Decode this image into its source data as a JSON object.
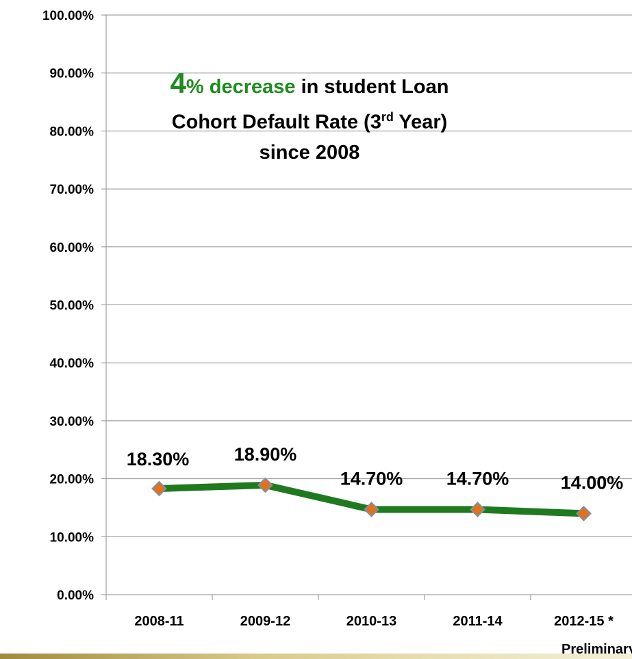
{
  "chart_data": {
    "type": "line",
    "title": {
      "highlight_number": "4",
      "highlight_text": "% decrease",
      "line1_rest": " in student Loan",
      "line2_pre": "Cohort Default Rate (3",
      "line2_sup": "rd",
      "line2_post": " Year)",
      "line3": "since 2008"
    },
    "categories": [
      "2008-11",
      "2009-12",
      "2010-13",
      "2011-14",
      "2012-15 *"
    ],
    "category_note": "Preliminary",
    "values": [
      18.3,
      18.9,
      14.7,
      14.7,
      14.0
    ],
    "data_labels": [
      "18.30%",
      "18.90%",
      "14.70%",
      "14.70%",
      "14.00%"
    ],
    "yticks": [
      "0.00%",
      "10.00%",
      "20.00%",
      "30.00%",
      "40.00%",
      "50.00%",
      "60.00%",
      "70.00%",
      "80.00%",
      "90.00%",
      "100.00%"
    ],
    "ylim": [
      0,
      100
    ],
    "grid": true,
    "line_color": "#1f7a1f",
    "marker_color": "#e2711d",
    "marker_edge_color": "#7f8fa6",
    "highlight_color": "#1f8c1f"
  }
}
